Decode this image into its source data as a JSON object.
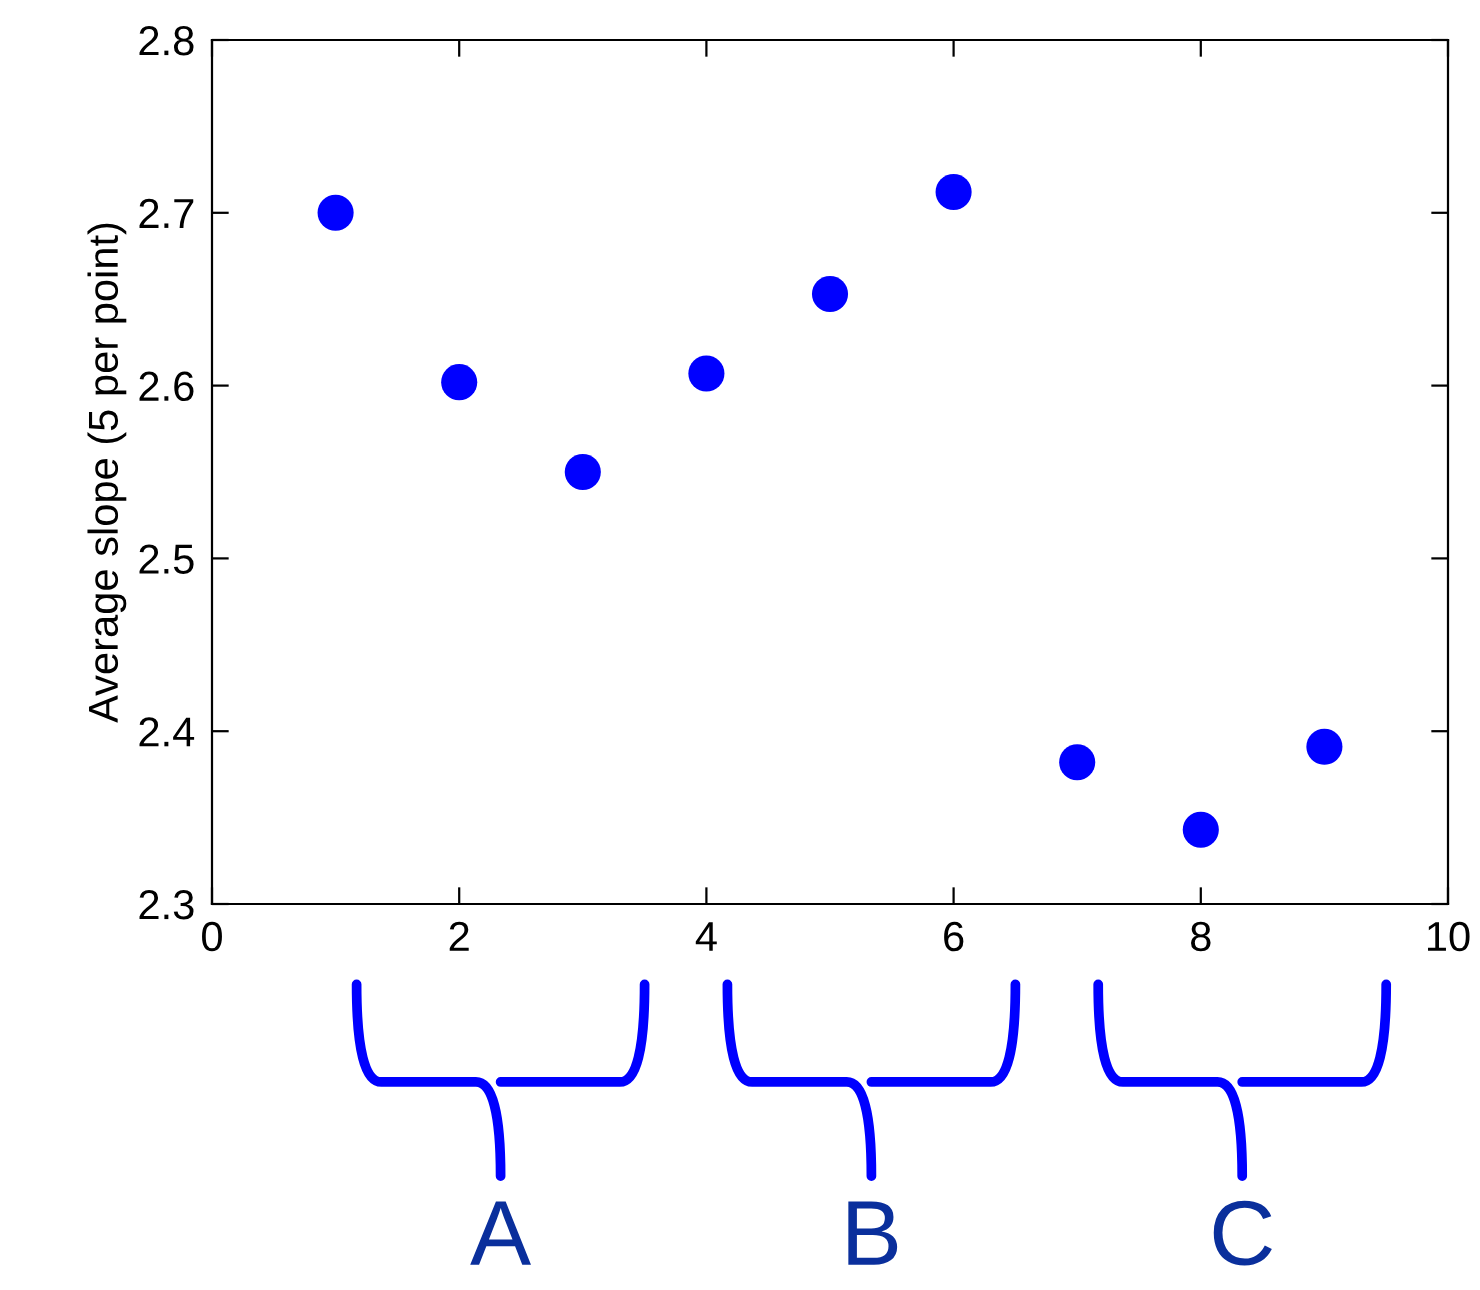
{
  "chart_data": {
    "type": "scatter",
    "ylabel": "Average slope (5 per point)",
    "x": [
      1,
      2,
      3,
      4,
      5,
      6,
      7,
      8,
      9
    ],
    "series": [
      {
        "color": "#0000ff",
        "values": [
          2.7,
          2.602,
          2.55,
          2.607,
          2.653,
          2.712,
          2.382,
          2.343,
          2.391
        ]
      }
    ],
    "marker": "circle",
    "xlim": [
      0,
      10
    ],
    "xticks": [
      0,
      2,
      4,
      6,
      8,
      10
    ],
    "ylim": [
      2.3,
      2.8
    ],
    "yticks": [
      2.3,
      2.4,
      2.5,
      2.6,
      2.7,
      2.8
    ],
    "grid": false,
    "legend": false,
    "annotations": [
      "A",
      "B",
      "C"
    ]
  }
}
